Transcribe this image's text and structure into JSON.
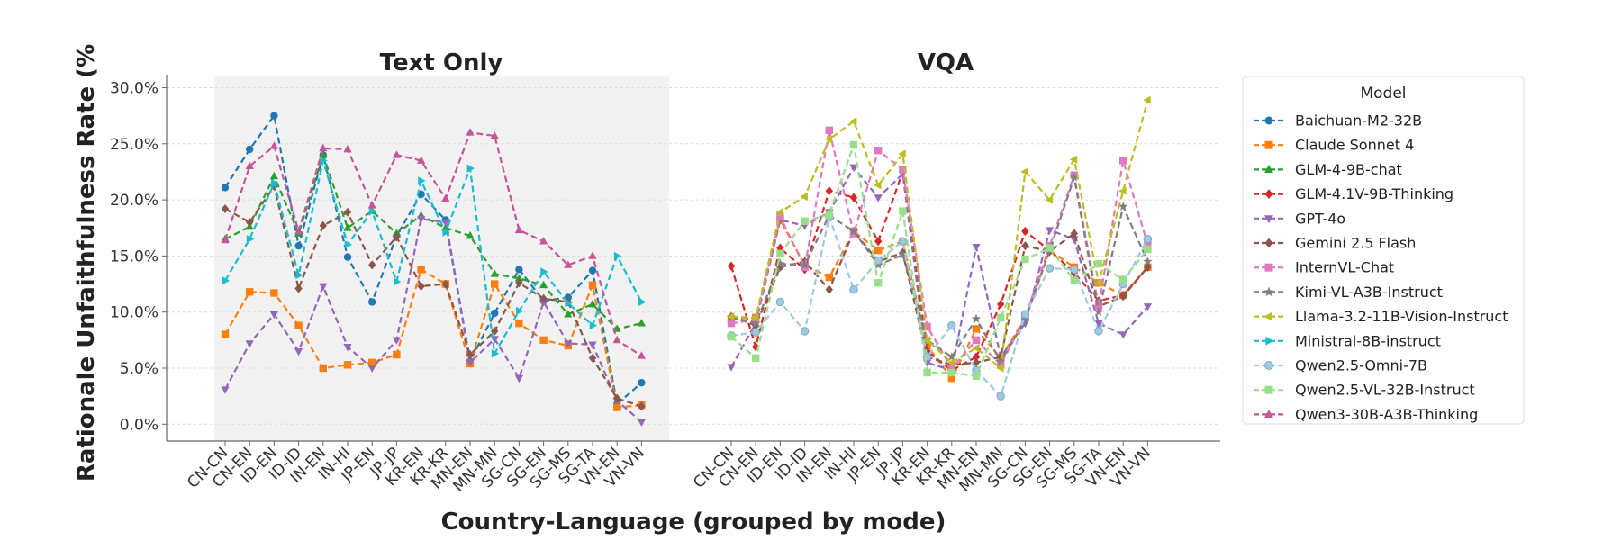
{
  "chart_data": {
    "type": "line",
    "panels": [
      {
        "title": "Text Only"
      },
      {
        "title": "VQA"
      }
    ],
    "xlabel": "Country-Language (grouped by mode)",
    "ylabel": "Rationale Unfaithfulness Rate (%",
    "ylim": [
      -1.5,
      31.0
    ],
    "yticks": [
      0,
      5,
      10,
      15,
      20,
      25,
      30
    ],
    "ytick_labels": [
      "0.0%",
      "5.0%",
      "10.0%",
      "15.0%",
      "20.0%",
      "25.0%",
      "30.0%"
    ],
    "categories": [
      "CN-CN",
      "CN-EN",
      "ID-EN",
      "ID-ID",
      "IN-EN",
      "IN-HI",
      "JP-EN",
      "JP-JP",
      "KR-EN",
      "KR-KR",
      "MN-EN",
      "MN-MN",
      "SG-CN",
      "SG-EN",
      "SG-MS",
      "SG-TA",
      "VN-EN",
      "VN-VN"
    ],
    "grid": true,
    "text_only_shading": "#f2f2f2",
    "legend": {
      "title": "Model",
      "position": "right"
    },
    "series": [
      {
        "name": "Baichuan-M2-32B",
        "color": "#1f77b4",
        "marker": "circle",
        "text_only": [
          21.1,
          24.5,
          27.5,
          15.9,
          24.0,
          14.9,
          10.9,
          16.8,
          20.5,
          18.2,
          5.6,
          9.9,
          13.8,
          11.0,
          11.3,
          13.7,
          1.8,
          3.7
        ],
        "vqa": null
      },
      {
        "name": "Claude Sonnet 4",
        "color": "#ff7f0e",
        "marker": "square",
        "text_only": [
          8.0,
          11.8,
          11.7,
          8.8,
          5.0,
          5.3,
          5.5,
          6.2,
          13.8,
          12.5,
          5.4,
          12.5,
          9.0,
          7.5,
          7.0,
          12.4,
          1.5,
          1.7
        ],
        "vqa": [
          9.4,
          9.5,
          18.2,
          14.2,
          13.1,
          17.2,
          15.5,
          16.3,
          7.0,
          4.1,
          8.5,
          5.9,
          9.5,
          15.5,
          14.0,
          12.6,
          11.5,
          14.0
        ]
      },
      {
        "name": "GLM-4-9B-chat",
        "color": "#2ca02c",
        "marker": "triangle-up",
        "text_only": [
          16.5,
          17.6,
          22.1,
          17.0,
          24.0,
          17.5,
          19.0,
          17.0,
          18.6,
          17.5,
          16.8,
          13.4,
          13.0,
          12.4,
          9.8,
          10.7,
          8.5,
          9.0
        ],
        "vqa": null
      },
      {
        "name": "GLM-4.1V-9B-Thinking",
        "color": "#d62728",
        "marker": "diamond",
        "text_only": null,
        "vqa": [
          14.1,
          6.9,
          15.7,
          13.8,
          20.8,
          20.2,
          16.3,
          22.5,
          6.5,
          4.8,
          6.0,
          10.7,
          17.2,
          15.5,
          13.5,
          11.0,
          11.5,
          14.0
        ]
      },
      {
        "name": "GPT-4o",
        "color": "#9467bd",
        "marker": "triangle-down",
        "text_only": [
          3.1,
          7.2,
          9.8,
          6.5,
          12.3,
          6.9,
          5.0,
          7.5,
          18.3,
          18.0,
          5.5,
          7.6,
          4.1,
          10.9,
          7.2,
          7.1,
          2.1,
          0.2
        ],
        "vqa": [
          5.1,
          9.0,
          18.2,
          17.7,
          18.9,
          22.9,
          20.2,
          22.3,
          5.5,
          4.8,
          15.8,
          6.0,
          9.0,
          17.3,
          16.5,
          9.0,
          8.0,
          10.5
        ]
      },
      {
        "name": "Gemini 2.5 Flash",
        "color": "#8c564b",
        "marker": "diamond",
        "text_only": [
          19.2,
          18.0,
          21.2,
          12.1,
          17.7,
          18.9,
          14.2,
          16.7,
          12.3,
          12.5,
          6.2,
          8.3,
          12.6,
          11.2,
          10.9,
          5.9,
          2.3,
          1.6
        ],
        "vqa": [
          9.6,
          8.8,
          14.0,
          14.5,
          12.0,
          17.2,
          14.5,
          15.3,
          6.0,
          5.3,
          5.5,
          6.0,
          15.9,
          15.4,
          17.0,
          10.5,
          11.4,
          14.0
        ]
      },
      {
        "name": "InternVL-Chat",
        "color": "#e377c2",
        "marker": "square",
        "text_only": null,
        "vqa": [
          9.0,
          9.3,
          18.5,
          14.0,
          26.2,
          17.0,
          24.4,
          22.7,
          8.7,
          5.0,
          7.5,
          5.3,
          9.5,
          15.9,
          22.2,
          10.5,
          23.5,
          16.0
        ]
      },
      {
        "name": "Kimi-VL-A3B-Instruct",
        "color": "#7f7f7f",
        "marker": "star",
        "text_only": null,
        "vqa": [
          9.5,
          9.0,
          14.3,
          14.2,
          18.6,
          17.2,
          14.2,
          15.1,
          7.5,
          6.0,
          9.4,
          5.6,
          9.3,
          15.5,
          22.0,
          10.0,
          19.4,
          14.5
        ]
      },
      {
        "name": "Llama-3.2-11B-Vision-Instruct",
        "color": "#bcbd22",
        "marker": "triangle-left",
        "text_only": null,
        "vqa": [
          9.6,
          9.5,
          18.9,
          20.3,
          25.4,
          27.0,
          21.3,
          24.1,
          7.5,
          5.5,
          6.8,
          5.0,
          22.5,
          20.0,
          23.6,
          12.6,
          20.8,
          28.9
        ]
      },
      {
        "name": "Ministral-8B-instruct",
        "color": "#17becf",
        "marker": "triangle-right",
        "text_only": [
          12.8,
          16.5,
          21.5,
          13.3,
          23.5,
          16.0,
          19.0,
          12.7,
          21.7,
          17.1,
          22.8,
          6.3,
          10.1,
          13.6,
          10.8,
          8.8,
          15.0,
          10.9
        ],
        "vqa": null
      },
      {
        "name": "Qwen2.5-Omni-7B",
        "color": "#9ecae1",
        "marker": "circle-open",
        "text_only": null,
        "vqa": [
          7.9,
          8.2,
          10.9,
          8.3,
          18.5,
          12.0,
          14.6,
          16.3,
          6.0,
          8.8,
          4.8,
          2.5,
          9.8,
          13.9,
          13.8,
          8.3,
          12.5,
          16.5
        ]
      },
      {
        "name": "Qwen2.5-VL-32B-Instruct",
        "color": "#98df8a",
        "marker": "square",
        "text_only": null,
        "vqa": [
          7.8,
          5.9,
          15.2,
          18.1,
          18.7,
          24.9,
          12.6,
          19.0,
          4.6,
          4.6,
          4.3,
          9.5,
          14.7,
          15.7,
          12.8,
          14.3,
          12.9,
          15.6
        ]
      },
      {
        "name": "Qwen3-30B-A3B-Thinking",
        "color": "#c8549b",
        "marker": "triangle-up",
        "text_only": [
          16.4,
          23.0,
          24.8,
          17.2,
          24.6,
          24.5,
          19.5,
          24.0,
          23.5,
          20.1,
          26.0,
          25.7,
          17.3,
          16.3,
          14.2,
          15.0,
          7.5,
          6.1
        ],
        "vqa": null
      }
    ]
  }
}
